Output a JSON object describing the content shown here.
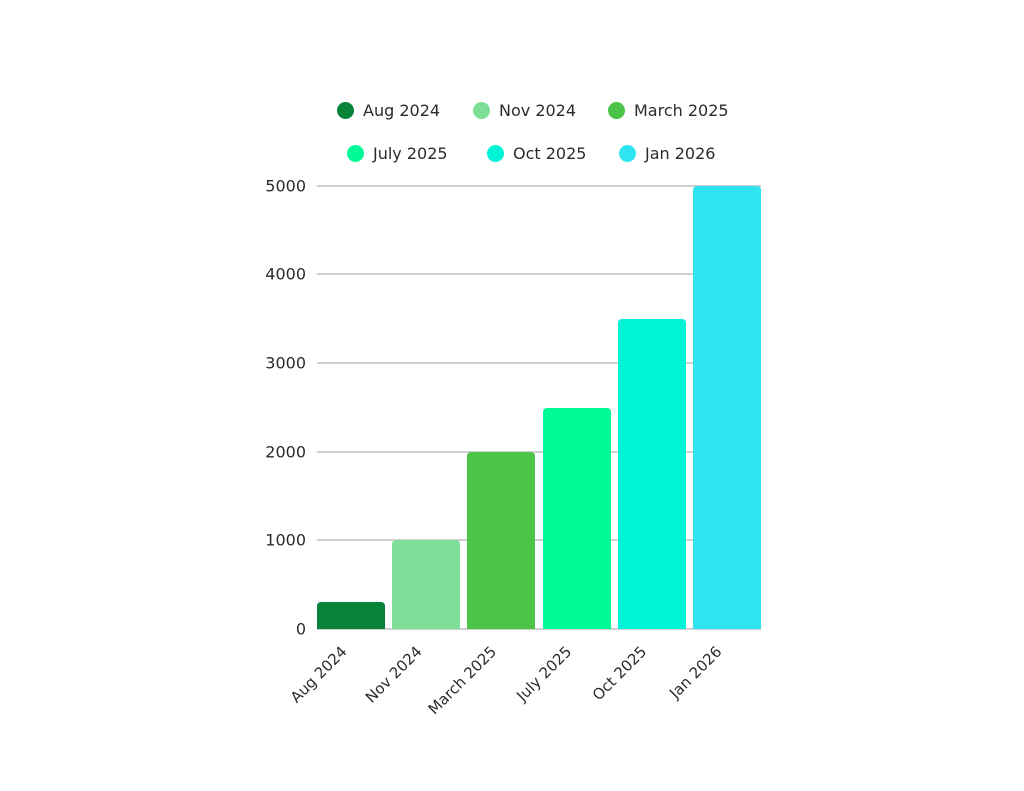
{
  "chart_data": {
    "type": "bar",
    "title": "",
    "xlabel": "",
    "ylabel": "",
    "categories": [
      "Aug 2024",
      "Nov 2024",
      "March 2025",
      "July 2025",
      "Oct 2025",
      "Jan 2026"
    ],
    "values": [
      300,
      1000,
      2000,
      2500,
      3500,
      5000
    ],
    "colors": [
      "#07843A",
      "#7EDF99",
      "#4BC447",
      "#00FA98",
      "#00F5D6",
      "#2FE4F0"
    ],
    "ylim": [
      0,
      5000
    ],
    "yticks": [
      0,
      1000,
      2000,
      3000,
      4000,
      5000
    ],
    "grid": true,
    "legend_position": "top",
    "legend": [
      "Aug 2024",
      "Nov 2024",
      "March 2025",
      "July 2025",
      "Oct 2025",
      "Jan 2026"
    ]
  },
  "legend": [
    {
      "label": "Aug 2024",
      "color": "#07843A"
    },
    {
      "label": "Nov 2024",
      "color": "#7EDF99"
    },
    {
      "label": "March 2025",
      "color": "#4BC447"
    },
    {
      "label": "July 2025",
      "color": "#00FA98"
    },
    {
      "label": "Oct 2025",
      "color": "#00F5D6"
    },
    {
      "label": "Jan 2026",
      "color": "#2FE4F0"
    }
  ],
  "yaxis": {
    "ticks": [
      "0",
      "1000",
      "2000",
      "3000",
      "4000",
      "5000"
    ]
  },
  "xaxis": {
    "labels": [
      "Aug 2024",
      "Nov 2024",
      "March 2025",
      "July 2025",
      "Oct 2025",
      "Jan 2026"
    ]
  }
}
